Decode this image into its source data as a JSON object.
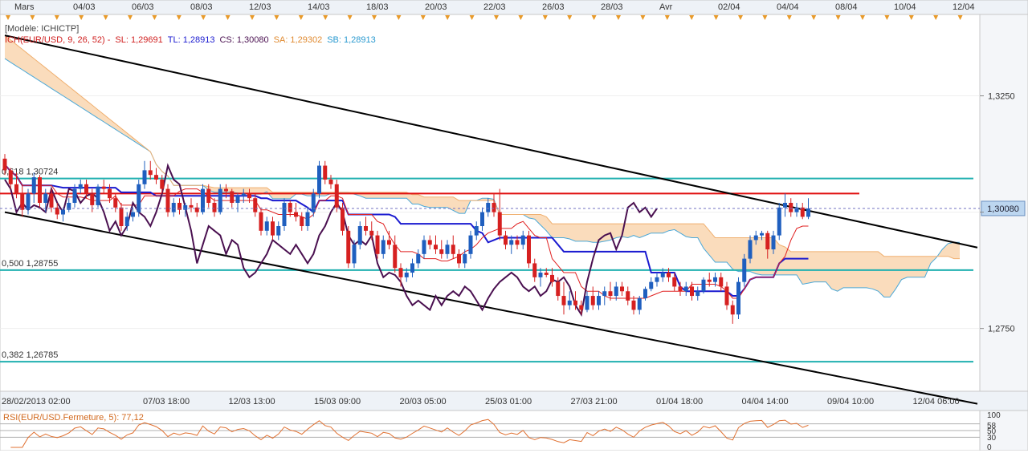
{
  "chart_data": {
    "type": "candlestick",
    "symbol": "EUR/USD",
    "top_date_labels": [
      "Mars",
      "04/03",
      "06/03",
      "08/03",
      "12/03",
      "14/03",
      "18/03",
      "20/03",
      "22/03",
      "26/03",
      "28/03",
      "Avr",
      "02/04",
      "04/04",
      "08/04",
      "10/04",
      "12/04"
    ],
    "bottom_time_labels": [
      "28/02/2013 02:00",
      "07/03 18:00",
      "12/03 13:00",
      "15/03 09:00",
      "20/03 05:00",
      "25/03 01:00",
      "27/03 21:00",
      "01/04 18:00",
      "04/04 14:00",
      "09/04 10:00",
      "12/04 06:00"
    ],
    "y_tick_labels": [
      "1,3250",
      "1,3000",
      "1,2750"
    ],
    "ylim": [
      1.2615,
      1.3425
    ],
    "current_price": 1.3008,
    "current_price_label": "1,30080",
    "legend": {
      "model": "[Modèle: ICHICTP]",
      "ich": "ICH(EUR/USD, 9, 26, 52) -",
      "sl": "SL: 1,29691",
      "tl": "TL: 1,28913",
      "cs": "CS: 1,30080",
      "sa": "SA: 1,29302",
      "sb": "SB: 1,28913"
    },
    "fib_levels": [
      {
        "label": "0,618 1,30724",
        "value": 1.30724
      },
      {
        "label": "0,500 1,28755",
        "value": 1.28755
      },
      {
        "label": "0,382 1,26785",
        "value": 1.26785
      }
    ],
    "resistance_level": 1.304,
    "channel": {
      "upper": [
        {
          "bar": 0,
          "price": 1.338
        },
        {
          "bar": 148,
          "price": 1.2967
        }
      ],
      "lower": [
        {
          "bar": 0,
          "price": 1.3
        },
        {
          "bar": 148,
          "price": 1.2588
        }
      ]
    },
    "candles": [
      [
        1.3115,
        1.3125,
        1.308,
        1.309
      ],
      [
        1.309,
        1.3095,
        1.305,
        1.306
      ],
      [
        1.306,
        1.3085,
        1.303,
        1.304
      ],
      [
        1.304,
        1.306,
        1.299,
        1.3005
      ],
      [
        1.3005,
        1.305,
        1.2995,
        1.304
      ],
      [
        1.304,
        1.3085,
        1.302,
        1.3075
      ],
      [
        1.3075,
        1.308,
        1.301,
        1.302
      ],
      [
        1.302,
        1.305,
        1.3,
        1.304
      ],
      [
        1.304,
        1.305,
        1.3,
        1.301
      ],
      [
        1.301,
        1.302,
        1.2985,
        1.2995
      ],
      [
        1.2995,
        1.301,
        1.298,
        1.3005
      ],
      [
        1.3005,
        1.303,
        1.3,
        1.302
      ],
      [
        1.302,
        1.306,
        1.301,
        1.305
      ],
      [
        1.305,
        1.307,
        1.304,
        1.306
      ],
      [
        1.306,
        1.307,
        1.303,
        1.304
      ],
      [
        1.304,
        1.305,
        1.3,
        1.3015
      ],
      [
        1.3015,
        1.306,
        1.301,
        1.3055
      ],
      [
        1.3055,
        1.307,
        1.304,
        1.305
      ],
      [
        1.305,
        1.306,
        1.302,
        1.303
      ],
      [
        1.303,
        1.304,
        1.3,
        1.301
      ],
      [
        1.301,
        1.302,
        1.296,
        1.297
      ],
      [
        1.297,
        1.3,
        1.296,
        1.299
      ],
      [
        1.299,
        1.301,
        1.298,
        1.3
      ],
      [
        1.3,
        1.307,
        1.299,
        1.306
      ],
      [
        1.306,
        1.311,
        1.305,
        1.309
      ],
      [
        1.309,
        1.311,
        1.307,
        1.308
      ],
      [
        1.308,
        1.3095,
        1.306,
        1.307
      ],
      [
        1.307,
        1.308,
        1.304,
        1.305
      ],
      [
        1.305,
        1.306,
        1.299,
        1.3
      ],
      [
        1.3,
        1.303,
        1.299,
        1.302
      ],
      [
        1.302,
        1.303,
        1.2995,
        1.3005
      ],
      [
        1.3005,
        1.302,
        1.299,
        1.3015
      ],
      [
        1.3015,
        1.303,
        1.3,
        1.301
      ],
      [
        1.301,
        1.302,
        1.299,
        1.3
      ],
      [
        1.3,
        1.306,
        1.2995,
        1.305
      ],
      [
        1.305,
        1.306,
        1.301,
        1.302
      ],
      [
        1.302,
        1.303,
        1.299,
        1.3
      ],
      [
        1.3,
        1.306,
        1.2995,
        1.305
      ],
      [
        1.305,
        1.306,
        1.303,
        1.3045
      ],
      [
        1.3045,
        1.305,
        1.301,
        1.302
      ],
      [
        1.302,
        1.304,
        1.3,
        1.3035
      ],
      [
        1.3035,
        1.305,
        1.302,
        1.304
      ],
      [
        1.304,
        1.305,
        1.302,
        1.303
      ],
      [
        1.303,
        1.304,
        1.299,
        1.3
      ],
      [
        1.3,
        1.301,
        1.295,
        1.296
      ],
      [
        1.296,
        1.299,
        1.295,
        1.298
      ],
      [
        1.298,
        1.299,
        1.294,
        1.295
      ],
      [
        1.295,
        1.298,
        1.294,
        1.297
      ],
      [
        1.297,
        1.303,
        1.296,
        1.302
      ],
      [
        1.302,
        1.3025,
        1.299,
        1.3
      ],
      [
        1.3,
        1.302,
        1.298,
        1.299
      ],
      [
        1.299,
        1.3,
        1.296,
        1.297
      ],
      [
        1.297,
        1.301,
        1.296,
        1.3
      ],
      [
        1.3,
        1.305,
        1.299,
        1.304
      ],
      [
        1.304,
        1.311,
        1.303,
        1.31
      ],
      [
        1.31,
        1.311,
        1.306,
        1.307
      ],
      [
        1.307,
        1.308,
        1.305,
        1.306
      ],
      [
        1.306,
        1.307,
        1.3,
        1.301
      ],
      [
        1.301,
        1.302,
        1.295,
        1.296
      ],
      [
        1.296,
        1.297,
        1.288,
        1.289
      ],
      [
        1.289,
        1.294,
        1.288,
        1.293
      ],
      [
        1.293,
        1.298,
        1.292,
        1.297
      ],
      [
        1.297,
        1.299,
        1.295,
        1.296
      ],
      [
        1.296,
        1.298,
        1.294,
        1.295
      ],
      [
        1.295,
        1.296,
        1.29,
        1.291
      ],
      [
        1.291,
        1.295,
        1.29,
        1.294
      ],
      [
        1.294,
        1.296,
        1.292,
        1.293
      ],
      [
        1.293,
        1.295,
        1.287,
        1.288
      ],
      [
        1.288,
        1.289,
        1.284,
        1.286
      ],
      [
        1.286,
        1.288,
        1.285,
        1.287
      ],
      [
        1.287,
        1.29,
        1.286,
        1.289
      ],
      [
        1.289,
        1.292,
        1.288,
        1.291
      ],
      [
        1.291,
        1.295,
        1.29,
        1.294
      ],
      [
        1.294,
        1.295,
        1.292,
        1.293
      ],
      [
        1.293,
        1.295,
        1.291,
        1.292
      ],
      [
        1.292,
        1.294,
        1.29,
        1.291
      ],
      [
        1.291,
        1.294,
        1.29,
        1.293
      ],
      [
        1.293,
        1.295,
        1.29,
        1.291
      ],
      [
        1.291,
        1.292,
        1.288,
        1.289
      ],
      [
        1.289,
        1.292,
        1.288,
        1.291
      ],
      [
        1.291,
        1.296,
        1.29,
        1.295
      ],
      [
        1.295,
        1.298,
        1.294,
        1.297
      ],
      [
        1.297,
        1.301,
        1.296,
        1.3
      ],
      [
        1.3,
        1.303,
        1.299,
        1.302
      ],
      [
        1.302,
        1.304,
        1.299,
        1.3
      ],
      [
        1.3,
        1.305,
        1.294,
        1.295
      ],
      [
        1.295,
        1.296,
        1.292,
        1.293
      ],
      [
        1.293,
        1.295,
        1.291,
        1.294
      ],
      [
        1.294,
        1.295,
        1.292,
        1.293
      ],
      [
        1.293,
        1.296,
        1.292,
        1.295
      ],
      [
        1.295,
        1.296,
        1.288,
        1.289
      ],
      [
        1.289,
        1.29,
        1.285,
        1.286
      ],
      [
        1.286,
        1.288,
        1.284,
        1.287
      ],
      [
        1.287,
        1.288,
        1.286,
        1.2865
      ],
      [
        1.2865,
        1.288,
        1.284,
        1.285
      ],
      [
        1.285,
        1.286,
        1.281,
        1.282
      ],
      [
        1.282,
        1.285,
        1.278,
        1.28
      ],
      [
        1.28,
        1.283,
        1.279,
        1.281
      ],
      [
        1.281,
        1.283,
        1.279,
        1.28
      ],
      [
        1.28,
        1.281,
        1.278,
        1.279
      ],
      [
        1.279,
        1.283,
        1.2785,
        1.282
      ],
      [
        1.282,
        1.284,
        1.279,
        1.28
      ],
      [
        1.28,
        1.283,
        1.279,
        1.282
      ],
      [
        1.282,
        1.284,
        1.28,
        1.283
      ],
      [
        1.283,
        1.285,
        1.281,
        1.282
      ],
      [
        1.282,
        1.285,
        1.281,
        1.284
      ],
      [
        1.284,
        1.285,
        1.282,
        1.283
      ],
      [
        1.283,
        1.284,
        1.28,
        1.281
      ],
      [
        1.281,
        1.282,
        1.278,
        1.279
      ],
      [
        1.279,
        1.282,
        1.278,
        1.2815
      ],
      [
        1.2815,
        1.284,
        1.281,
        1.2835
      ],
      [
        1.2835,
        1.286,
        1.283,
        1.285
      ],
      [
        1.285,
        1.287,
        1.284,
        1.286
      ],
      [
        1.286,
        1.288,
        1.285,
        1.287
      ],
      [
        1.287,
        1.288,
        1.285,
        1.286
      ],
      [
        1.286,
        1.287,
        1.283,
        1.284
      ],
      [
        1.284,
        1.285,
        1.282,
        1.283
      ],
      [
        1.283,
        1.285,
        1.282,
        1.284
      ],
      [
        1.284,
        1.285,
        1.281,
        1.282
      ],
      [
        1.282,
        1.284,
        1.281,
        1.283
      ],
      [
        1.283,
        1.286,
        1.2825,
        1.2855
      ],
      [
        1.2855,
        1.287,
        1.284,
        1.285
      ],
      [
        1.285,
        1.287,
        1.284,
        1.286
      ],
      [
        1.286,
        1.287,
        1.283,
        1.284
      ],
      [
        1.284,
        1.285,
        1.279,
        1.28
      ],
      [
        1.28,
        1.281,
        1.276,
        1.278
      ],
      [
        1.278,
        1.286,
        1.277,
        1.285
      ],
      [
        1.285,
        1.291,
        1.284,
        1.29
      ],
      [
        1.29,
        1.295,
        1.289,
        1.294
      ],
      [
        1.294,
        1.296,
        1.293,
        1.295
      ],
      [
        1.295,
        1.296,
        1.294,
        1.2955
      ],
      [
        1.2955,
        1.296,
        1.29,
        1.292
      ],
      [
        1.292,
        1.296,
        1.291,
        1.295
      ],
      [
        1.295,
        1.302,
        1.294,
        1.301
      ],
      [
        1.301,
        1.304,
        1.299,
        1.302
      ],
      [
        1.302,
        1.303,
        1.299,
        1.3
      ],
      [
        1.3,
        1.302,
        1.299,
        1.301
      ],
      [
        1.301,
        1.302,
        1.2985,
        1.299
      ],
      [
        1.299,
        1.303,
        1.2985,
        1.3008
      ]
    ]
  },
  "rsi": {
    "label": "RSI(EUR/USD.Fermeture, 5): 77,12",
    "levels": [
      "100",
      "58",
      "50",
      "30",
      "0"
    ]
  },
  "colors": {
    "bull": "#1f5fbf",
    "bear": "#d62020",
    "cloud_fill": "#f9d6b0",
    "cloud_edge": "#4aa8d8",
    "kijun": "#1a1ad0",
    "tenkan": "#e02020",
    "chikou": "#4a1050",
    "fib": "#20b0b0",
    "resistance": "#e01010",
    "channel": "#000000",
    "price_box": "#bcd6f0",
    "marker": "#e89a2a"
  }
}
